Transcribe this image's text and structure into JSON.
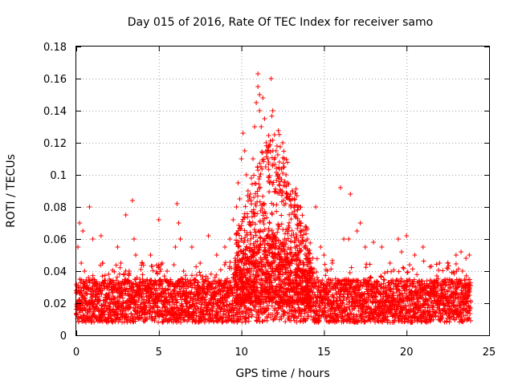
{
  "chart_data": {
    "type": "scatter",
    "title": "Day 015 of 2016, Rate Of TEC Index for receiver samo",
    "xlabel": "GPS time / hours",
    "ylabel": "ROTI / TECUs",
    "xlim": [
      0,
      25
    ],
    "ylim": [
      0,
      0.18
    ],
    "grid": true,
    "marker": "+",
    "color": "#ff0000",
    "xticks": [
      {
        "value": 0,
        "label": "0"
      },
      {
        "value": 5,
        "label": "5"
      },
      {
        "value": 10,
        "label": "10"
      },
      {
        "value": 15,
        "label": "15"
      },
      {
        "value": 20,
        "label": "20"
      },
      {
        "value": 25,
        "label": "25"
      }
    ],
    "yticks": [
      {
        "value": 0,
        "label": "0"
      },
      {
        "value": 0.02,
        "label": "0.02"
      },
      {
        "value": 0.04,
        "label": "0.04"
      },
      {
        "value": 0.06,
        "label": "0.06"
      },
      {
        "value": 0.08,
        "label": "0.08"
      },
      {
        "value": 0.1,
        "label": "0.1"
      },
      {
        "value": 0.12,
        "label": "0.12"
      },
      {
        "value": 0.14,
        "label": "0.14"
      },
      {
        "value": 0.16,
        "label": "0.16"
      },
      {
        "value": 0.18,
        "label": "0.18"
      }
    ],
    "series": [
      {
        "name": "ROTI",
        "x": [
          0.1,
          0.2,
          0.3,
          0.4,
          0.5,
          0.8,
          1.0,
          1.5,
          1.6,
          2.0,
          2.5,
          2.7,
          3.0,
          3.2,
          3.4,
          3.5,
          3.6,
          4.0,
          4.5,
          5.0,
          5.2,
          5.5,
          6.0,
          6.1,
          6.2,
          6.3,
          6.5,
          7.0,
          7.5,
          8.0,
          8.5,
          9.0,
          9.3,
          9.5,
          9.7,
          9.8,
          9.9,
          10.0,
          10.1,
          10.2,
          10.3,
          10.4,
          10.5,
          10.6,
          10.7,
          10.8,
          10.9,
          11.0,
          11.0,
          11.1,
          11.1,
          11.2,
          11.3,
          11.4,
          11.5,
          11.6,
          11.7,
          11.8,
          11.9,
          12.0,
          12.1,
          12.2,
          12.3,
          12.4,
          12.5,
          12.6,
          12.7,
          12.8,
          12.9,
          13.0,
          13.1,
          13.2,
          13.3,
          13.4,
          13.5,
          13.6,
          13.8,
          14.0,
          14.2,
          14.5,
          14.8,
          15.0,
          15.5,
          16.0,
          16.2,
          16.5,
          16.6,
          17.0,
          17.2,
          17.5,
          18.0,
          18.5,
          19.0,
          19.5,
          19.7,
          20.0,
          20.5,
          21.0,
          21.5,
          22.0,
          22.5,
          23.0,
          23.3,
          23.6,
          23.8
        ],
        "y": [
          0.055,
          0.07,
          0.045,
          0.065,
          0.04,
          0.08,
          0.06,
          0.062,
          0.045,
          0.035,
          0.055,
          0.045,
          0.075,
          0.04,
          0.084,
          0.06,
          0.05,
          0.045,
          0.05,
          0.072,
          0.045,
          0.04,
          0.055,
          0.082,
          0.07,
          0.06,
          0.04,
          0.055,
          0.045,
          0.062,
          0.05,
          0.055,
          0.06,
          0.072,
          0.08,
          0.095,
          0.085,
          0.11,
          0.126,
          0.115,
          0.1,
          0.09,
          0.085,
          0.098,
          0.11,
          0.13,
          0.145,
          0.163,
          0.155,
          0.15,
          0.14,
          0.13,
          0.148,
          0.135,
          0.12,
          0.11,
          0.095,
          0.16,
          0.14,
          0.125,
          0.115,
          0.1,
          0.108,
          0.09,
          0.12,
          0.11,
          0.1,
          0.095,
          0.085,
          0.08,
          0.09,
          0.085,
          0.075,
          0.078,
          0.07,
          0.065,
          0.055,
          0.06,
          0.045,
          0.08,
          0.055,
          0.05,
          0.045,
          0.092,
          0.06,
          0.06,
          0.088,
          0.065,
          0.07,
          0.055,
          0.058,
          0.055,
          0.045,
          0.06,
          0.052,
          0.062,
          0.05,
          0.055,
          0.043,
          0.045,
          0.045,
          0.05,
          0.052,
          0.048,
          0.05
        ]
      }
    ],
    "dense_band": {
      "x_start": 0,
      "x_end": 23.9,
      "y_low": 0.008,
      "y_high": 0.035
    }
  }
}
